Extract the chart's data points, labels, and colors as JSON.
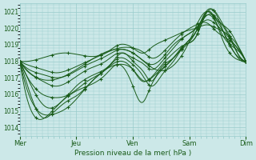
{
  "xlabel": "Pression niveau de la mer( hPa )",
  "ylim": [
    1013.5,
    1021.5
  ],
  "yticks": [
    1014,
    1015,
    1016,
    1017,
    1018,
    1019,
    1020,
    1021
  ],
  "day_labels": [
    "Mer",
    "Jeu",
    "Ven",
    "Sam",
    "Dim"
  ],
  "day_positions": [
    0,
    0.25,
    0.5,
    0.75,
    1.0
  ],
  "xlim": [
    0,
    1.0
  ],
  "bg_color": "#cce8e8",
  "grid_color": "#99cccc",
  "line_color": "#1a5c1a",
  "curves": [
    {
      "points": [
        [
          0,
          1018
        ],
        [
          0.08,
          1015.0
        ],
        [
          0.15,
          1014.8
        ],
        [
          0.22,
          1015.3
        ],
        [
          0.3,
          1016.5
        ],
        [
          0.38,
          1017.5
        ],
        [
          0.46,
          1017.8
        ],
        [
          0.5,
          1017.5
        ],
        [
          0.55,
          1016.8
        ],
        [
          0.6,
          1017.2
        ],
        [
          0.65,
          1017.8
        ],
        [
          0.7,
          1018.5
        ],
        [
          0.78,
          1019.8
        ],
        [
          0.83,
          1021.1
        ],
        [
          0.87,
          1020.9
        ],
        [
          0.9,
          1020.2
        ],
        [
          0.93,
          1019.5
        ],
        [
          0.97,
          1018.3
        ],
        [
          1.0,
          1018.0
        ]
      ]
    },
    {
      "points": [
        [
          0,
          1018
        ],
        [
          0.07,
          1016.0
        ],
        [
          0.12,
          1015.2
        ],
        [
          0.18,
          1015.5
        ],
        [
          0.25,
          1016.5
        ],
        [
          0.33,
          1017.2
        ],
        [
          0.4,
          1017.8
        ],
        [
          0.46,
          1018.5
        ],
        [
          0.5,
          1018.0
        ],
        [
          0.55,
          1017.3
        ],
        [
          0.58,
          1016.8
        ],
        [
          0.62,
          1017.5
        ],
        [
          0.68,
          1018.2
        ],
        [
          0.73,
          1019.0
        ],
        [
          0.78,
          1019.8
        ],
        [
          0.83,
          1020.8
        ],
        [
          0.87,
          1020.6
        ],
        [
          0.9,
          1020.1
        ],
        [
          0.95,
          1018.8
        ],
        [
          1.0,
          1018.0
        ]
      ]
    },
    {
      "points": [
        [
          0,
          1018
        ],
        [
          0.06,
          1016.5
        ],
        [
          0.1,
          1016.0
        ],
        [
          0.15,
          1015.8
        ],
        [
          0.22,
          1016.0
        ],
        [
          0.3,
          1016.8
        ],
        [
          0.38,
          1017.5
        ],
        [
          0.44,
          1018.2
        ],
        [
          0.5,
          1017.8
        ],
        [
          0.54,
          1017.2
        ],
        [
          0.58,
          1016.5
        ],
        [
          0.63,
          1017.2
        ],
        [
          0.68,
          1018.0
        ],
        [
          0.73,
          1019.0
        ],
        [
          0.78,
          1019.8
        ],
        [
          0.83,
          1021.0
        ],
        [
          0.87,
          1020.5
        ],
        [
          0.9,
          1019.8
        ],
        [
          0.95,
          1018.5
        ],
        [
          1.0,
          1018.0
        ]
      ]
    },
    {
      "points": [
        [
          0,
          1018
        ],
        [
          0.05,
          1017.2
        ],
        [
          0.1,
          1016.8
        ],
        [
          0.15,
          1016.5
        ],
        [
          0.22,
          1016.8
        ],
        [
          0.3,
          1017.5
        ],
        [
          0.38,
          1018.0
        ],
        [
          0.44,
          1018.5
        ],
        [
          0.5,
          1018.2
        ],
        [
          0.55,
          1017.8
        ],
        [
          0.58,
          1017.5
        ],
        [
          0.63,
          1018.0
        ],
        [
          0.68,
          1018.8
        ],
        [
          0.73,
          1019.5
        ],
        [
          0.78,
          1020.0
        ],
        [
          0.83,
          1020.8
        ],
        [
          0.87,
          1020.3
        ],
        [
          0.9,
          1019.5
        ],
        [
          0.95,
          1018.8
        ],
        [
          1.0,
          1018.0
        ]
      ]
    },
    {
      "points": [
        [
          0,
          1018
        ],
        [
          0.04,
          1017.5
        ],
        [
          0.1,
          1017.2
        ],
        [
          0.16,
          1017.0
        ],
        [
          0.22,
          1017.2
        ],
        [
          0.3,
          1017.8
        ],
        [
          0.38,
          1018.3
        ],
        [
          0.44,
          1018.7
        ],
        [
          0.5,
          1018.5
        ],
        [
          0.55,
          1018.0
        ],
        [
          0.58,
          1017.8
        ],
        [
          0.63,
          1018.2
        ],
        [
          0.68,
          1019.0
        ],
        [
          0.73,
          1019.5
        ],
        [
          0.78,
          1020.0
        ],
        [
          0.83,
          1020.5
        ],
        [
          0.87,
          1020.2
        ],
        [
          0.9,
          1019.8
        ],
        [
          0.95,
          1019.0
        ],
        [
          1.0,
          1018.0
        ]
      ]
    },
    {
      "points": [
        [
          0,
          1018
        ],
        [
          0.03,
          1017.8
        ],
        [
          0.1,
          1017.5
        ],
        [
          0.16,
          1017.3
        ],
        [
          0.22,
          1017.5
        ],
        [
          0.3,
          1018.0
        ],
        [
          0.38,
          1018.5
        ],
        [
          0.44,
          1018.8
        ],
        [
          0.5,
          1018.8
        ],
        [
          0.55,
          1018.5
        ],
        [
          0.58,
          1018.2
        ],
        [
          0.63,
          1018.5
        ],
        [
          0.68,
          1019.2
        ],
        [
          0.73,
          1019.8
        ],
        [
          0.78,
          1020.2
        ],
        [
          0.83,
          1020.3
        ],
        [
          0.87,
          1019.8
        ],
        [
          0.9,
          1019.5
        ],
        [
          0.95,
          1019.0
        ],
        [
          1.0,
          1018.0
        ]
      ]
    },
    {
      "points": [
        [
          0,
          1018
        ],
        [
          0.1,
          1018.2
        ],
        [
          0.2,
          1018.5
        ],
        [
          0.3,
          1018.3
        ],
        [
          0.38,
          1018.5
        ],
        [
          0.44,
          1019.0
        ],
        [
          0.5,
          1018.8
        ],
        [
          0.55,
          1018.5
        ],
        [
          0.58,
          1018.8
        ],
        [
          0.63,
          1019.2
        ],
        [
          0.68,
          1019.5
        ],
        [
          0.73,
          1019.8
        ],
        [
          0.78,
          1020.0
        ],
        [
          0.83,
          1020.2
        ],
        [
          0.87,
          1020.0
        ],
        [
          0.9,
          1019.8
        ],
        [
          0.95,
          1019.2
        ],
        [
          1.0,
          1018.0
        ]
      ]
    },
    {
      "points": [
        [
          0,
          1018
        ],
        [
          0.08,
          1014.5
        ],
        [
          0.13,
          1014.8
        ],
        [
          0.18,
          1015.5
        ],
        [
          0.25,
          1016.2
        ],
        [
          0.3,
          1016.5
        ],
        [
          0.38,
          1017.2
        ],
        [
          0.44,
          1017.8
        ],
        [
          0.5,
          1016.5
        ],
        [
          0.54,
          1015.5
        ],
        [
          0.58,
          1016.5
        ],
        [
          0.63,
          1017.5
        ],
        [
          0.68,
          1018.2
        ],
        [
          0.73,
          1019.0
        ],
        [
          0.78,
          1019.5
        ],
        [
          0.83,
          1021.0
        ],
        [
          0.87,
          1020.3
        ],
        [
          0.9,
          1019.2
        ],
        [
          0.95,
          1018.2
        ],
        [
          1.0,
          1018.0
        ]
      ]
    },
    {
      "points": [
        [
          0,
          1018
        ],
        [
          0.06,
          1015.5
        ],
        [
          0.1,
          1014.6
        ],
        [
          0.14,
          1014.8
        ],
        [
          0.2,
          1015.5
        ],
        [
          0.26,
          1016.0
        ],
        [
          0.32,
          1016.8
        ],
        [
          0.38,
          1017.5
        ],
        [
          0.44,
          1018.0
        ],
        [
          0.5,
          1017.5
        ],
        [
          0.54,
          1016.8
        ],
        [
          0.58,
          1017.0
        ],
        [
          0.63,
          1017.8
        ],
        [
          0.68,
          1018.5
        ],
        [
          0.73,
          1019.0
        ],
        [
          0.78,
          1019.5
        ],
        [
          0.83,
          1021.0
        ],
        [
          0.87,
          1020.8
        ],
        [
          0.9,
          1019.8
        ],
        [
          0.95,
          1018.5
        ],
        [
          1.0,
          1018.0
        ]
      ]
    },
    {
      "points": [
        [
          0,
          1018
        ],
        [
          0.25,
          1017.5
        ],
        [
          0.5,
          1018.5
        ],
        [
          0.6,
          1017.5
        ],
        [
          0.75,
          1019.2
        ],
        [
          0.83,
          1021.0
        ],
        [
          0.87,
          1020.5
        ],
        [
          0.93,
          1019.8
        ],
        [
          0.97,
          1018.8
        ],
        [
          1.0,
          1018.0
        ]
      ]
    }
  ]
}
